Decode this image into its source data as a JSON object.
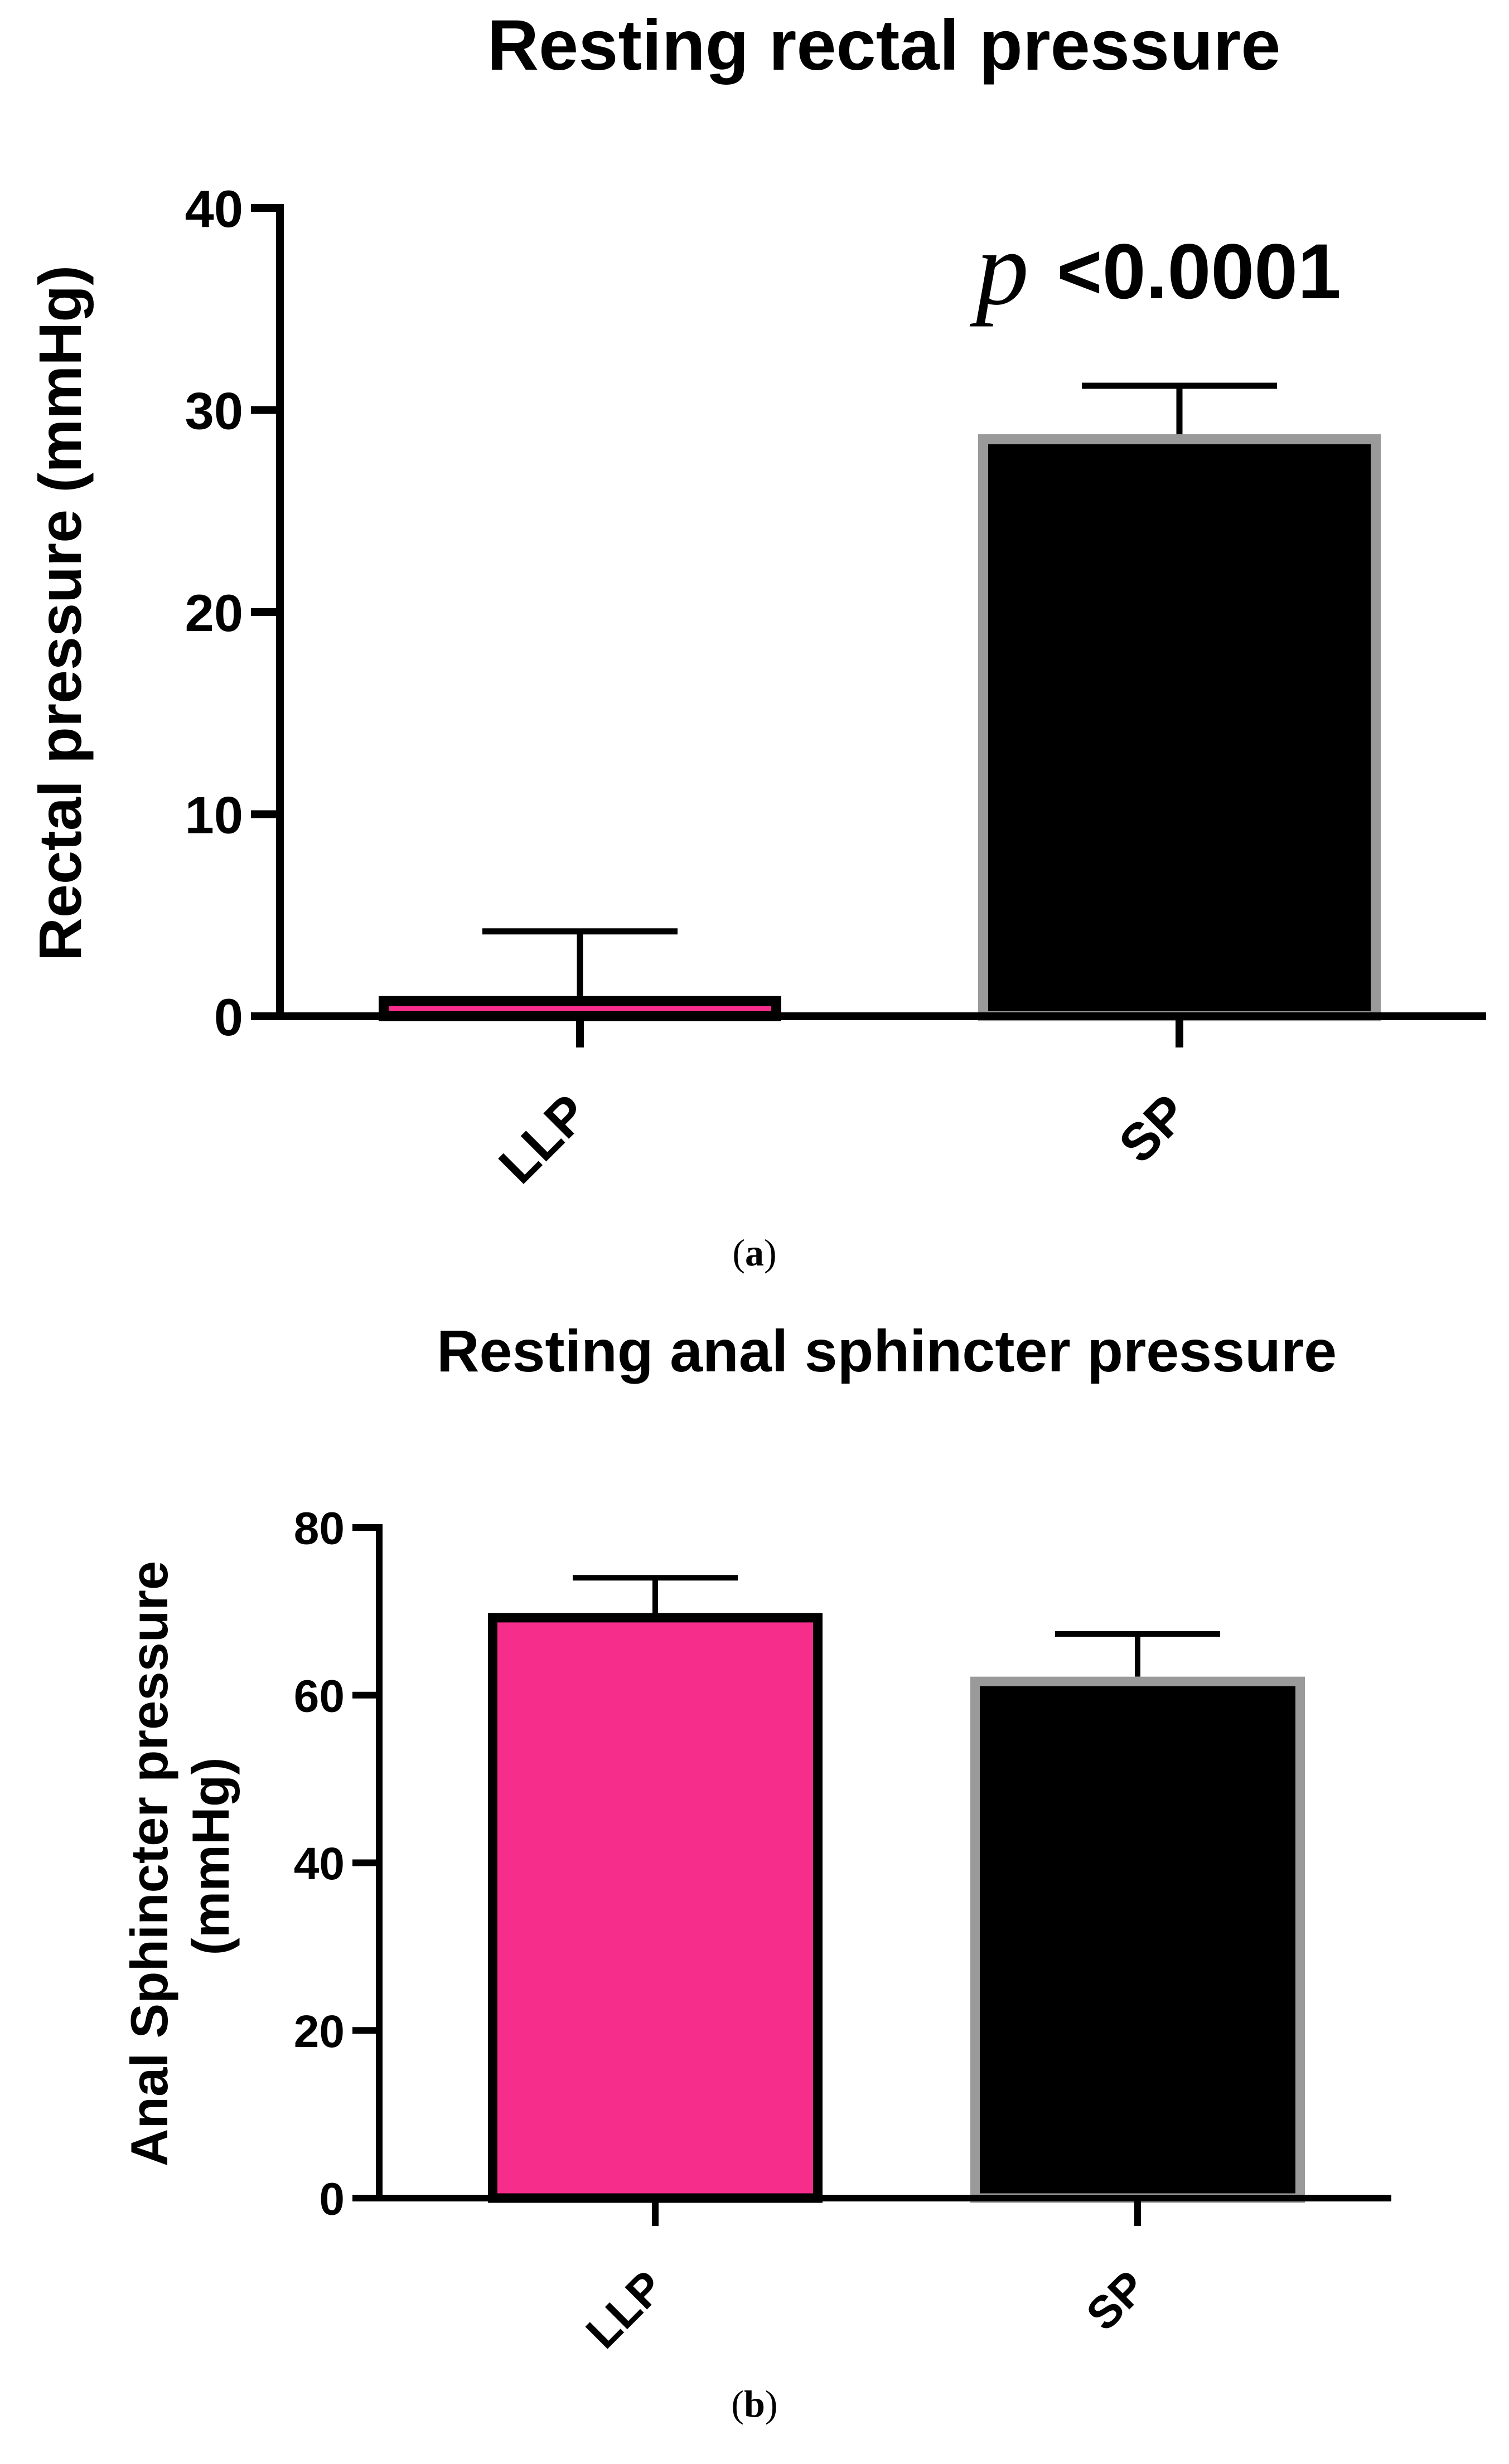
{
  "chart_data": [
    {
      "type": "bar",
      "panel_label": "a",
      "title": "Resting rectal pressure",
      "xlabel": "",
      "ylabel": "Rectal pressure (mmHg)",
      "categories": [
        "LLP",
        "SP"
      ],
      "values": [
        1,
        28.8
      ],
      "error_upper": [
        4.2,
        31.2
      ],
      "ylim": [
        0,
        40
      ],
      "yticks": [
        0,
        10,
        20,
        30,
        40
      ],
      "annotation": {
        "italic": "p",
        "text": "<0.0001"
      },
      "fill_colors": [
        "#f72d8c",
        "#000000"
      ],
      "edge_colors": [
        "#000000",
        "#9a9a9a"
      ]
    },
    {
      "type": "bar",
      "panel_label": "b",
      "title": "Resting anal sphincter pressure",
      "xlabel": "",
      "ylabel_lines": [
        "Anal Sphincter pressure",
        "(mmHg)"
      ],
      "categories": [
        "LLP",
        "SP"
      ],
      "values": [
        69.8,
        62.2
      ],
      "error_upper": [
        74,
        67.3
      ],
      "ylim": [
        0,
        80
      ],
      "yticks": [
        0,
        20,
        40,
        60,
        80
      ],
      "fill_colors": [
        "#f72d8c",
        "#000000"
      ],
      "edge_colors": [
        "#000000",
        "#9a9a9a"
      ]
    }
  ]
}
